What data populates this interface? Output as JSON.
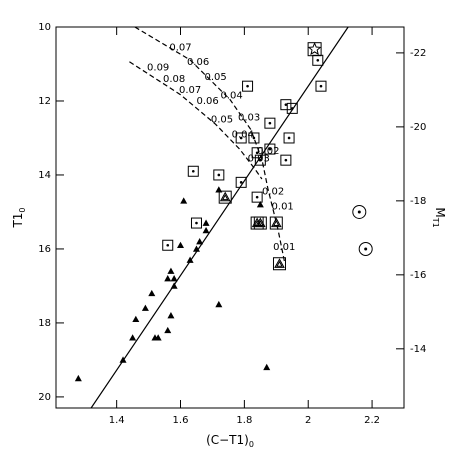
{
  "chart_data": {
    "type": "scatter",
    "xlabel": {
      "main": "(C−T1)",
      "sub": "0"
    },
    "ylabel": {
      "main": "T1",
      "sub": "0"
    },
    "y2label": {
      "main": "M",
      "sub": "T1"
    },
    "xlim": [
      1.21,
      2.3
    ],
    "xticks": [
      1.4,
      1.6,
      1.8,
      2,
      2.2
    ],
    "ylim": [
      20.3,
      10
    ],
    "yticks": [
      10,
      12,
      14,
      16,
      18,
      20
    ],
    "y2lim": [
      -12.4,
      -22.7
    ],
    "y2ticks": [
      -22,
      -20,
      -18,
      -16,
      -14
    ],
    "color": "#000000",
    "series": [
      {
        "marker": "triangle",
        "x": [
          1.28,
          1.42,
          1.45,
          1.46,
          1.49,
          1.52,
          1.53,
          1.51,
          1.56,
          1.57,
          1.56,
          1.58,
          1.58,
          1.57,
          1.6,
          1.63,
          1.65,
          1.66,
          1.68,
          1.68,
          1.72,
          1.72,
          1.87,
          1.85,
          1.61
        ],
        "y": [
          19.5,
          19.0,
          18.4,
          17.9,
          17.6,
          18.4,
          18.4,
          17.2,
          18.2,
          17.8,
          16.8,
          17.0,
          16.8,
          16.6,
          15.9,
          16.3,
          16.0,
          15.8,
          15.5,
          15.3,
          17.5,
          14.4,
          19.2,
          14.8,
          14.7
        ]
      },
      {
        "marker": "square-dot",
        "x": [
          1.81,
          2.04,
          1.93,
          1.95,
          1.88,
          1.83,
          1.94,
          1.79,
          1.84,
          1.88,
          1.64,
          1.72,
          1.79,
          1.93,
          1.85,
          1.65,
          1.56,
          1.84,
          2.03
        ],
        "y": [
          11.6,
          11.6,
          12.1,
          12.2,
          12.6,
          13.0,
          13.0,
          13.0,
          13.4,
          13.3,
          13.9,
          14.0,
          14.2,
          13.6,
          13.6,
          15.3,
          15.9,
          14.6,
          10.9
        ]
      },
      {
        "marker": "square-triangle",
        "x": [
          1.74,
          1.84,
          1.85,
          1.9,
          1.91
        ],
        "y": [
          14.6,
          15.3,
          15.3,
          15.3,
          16.4
        ]
      },
      {
        "marker": "circle-dot",
        "x": [
          2.16,
          2.18
        ],
        "y": [
          15.0,
          16.0
        ]
      },
      {
        "marker": "square-star",
        "x": [
          2.02
        ],
        "y": [
          10.6
        ]
      }
    ],
    "lines": [
      {
        "dashed": false,
        "x": [
          1.32,
          2.125
        ],
        "y": [
          20.3,
          10.0
        ]
      },
      {
        "dashed": true,
        "x": [
          1.457,
          1.63,
          1.755,
          1.82,
          1.855,
          1.874,
          1.905,
          1.927
        ],
        "y": [
          10.0,
          10.89,
          11.96,
          12.77,
          13.58,
          14.38,
          15.46,
          16.4
        ]
      },
      {
        "dashed": true,
        "x": [
          1.44,
          1.6,
          1.71,
          1.786,
          1.833,
          1.855
        ],
        "y": [
          10.94,
          11.83,
          12.63,
          13.31,
          13.84,
          14.11
        ]
      }
    ],
    "annotations": [
      {
        "text": "0.07",
        "x": 1.6,
        "y": 10.55
      },
      {
        "text": "0.06",
        "x": 1.655,
        "y": 10.95
      },
      {
        "text": "0.05",
        "x": 1.71,
        "y": 11.35
      },
      {
        "text": "0.04",
        "x": 1.76,
        "y": 11.85
      },
      {
        "text": "0.03",
        "x": 1.815,
        "y": 12.45
      },
      {
        "text": "0.02",
        "x": 1.875,
        "y": 13.35
      },
      {
        "text": "0.01",
        "x": 1.92,
        "y": 14.85
      },
      {
        "text": "0.01",
        "x": 1.925,
        "y": 15.95
      },
      {
        "text": "0.09",
        "x": 1.53,
        "y": 11.1
      },
      {
        "text": "0.08",
        "x": 1.58,
        "y": 11.4
      },
      {
        "text": "0.07",
        "x": 1.63,
        "y": 11.7
      },
      {
        "text": "0.06",
        "x": 1.685,
        "y": 12.0
      },
      {
        "text": "0.05",
        "x": 1.73,
        "y": 12.5
      },
      {
        "text": "0.04",
        "x": 1.795,
        "y": 12.9
      },
      {
        "text": "0.03",
        "x": 1.845,
        "y": 13.55
      },
      {
        "text": "0.02",
        "x": 1.89,
        "y": 14.45
      }
    ]
  }
}
